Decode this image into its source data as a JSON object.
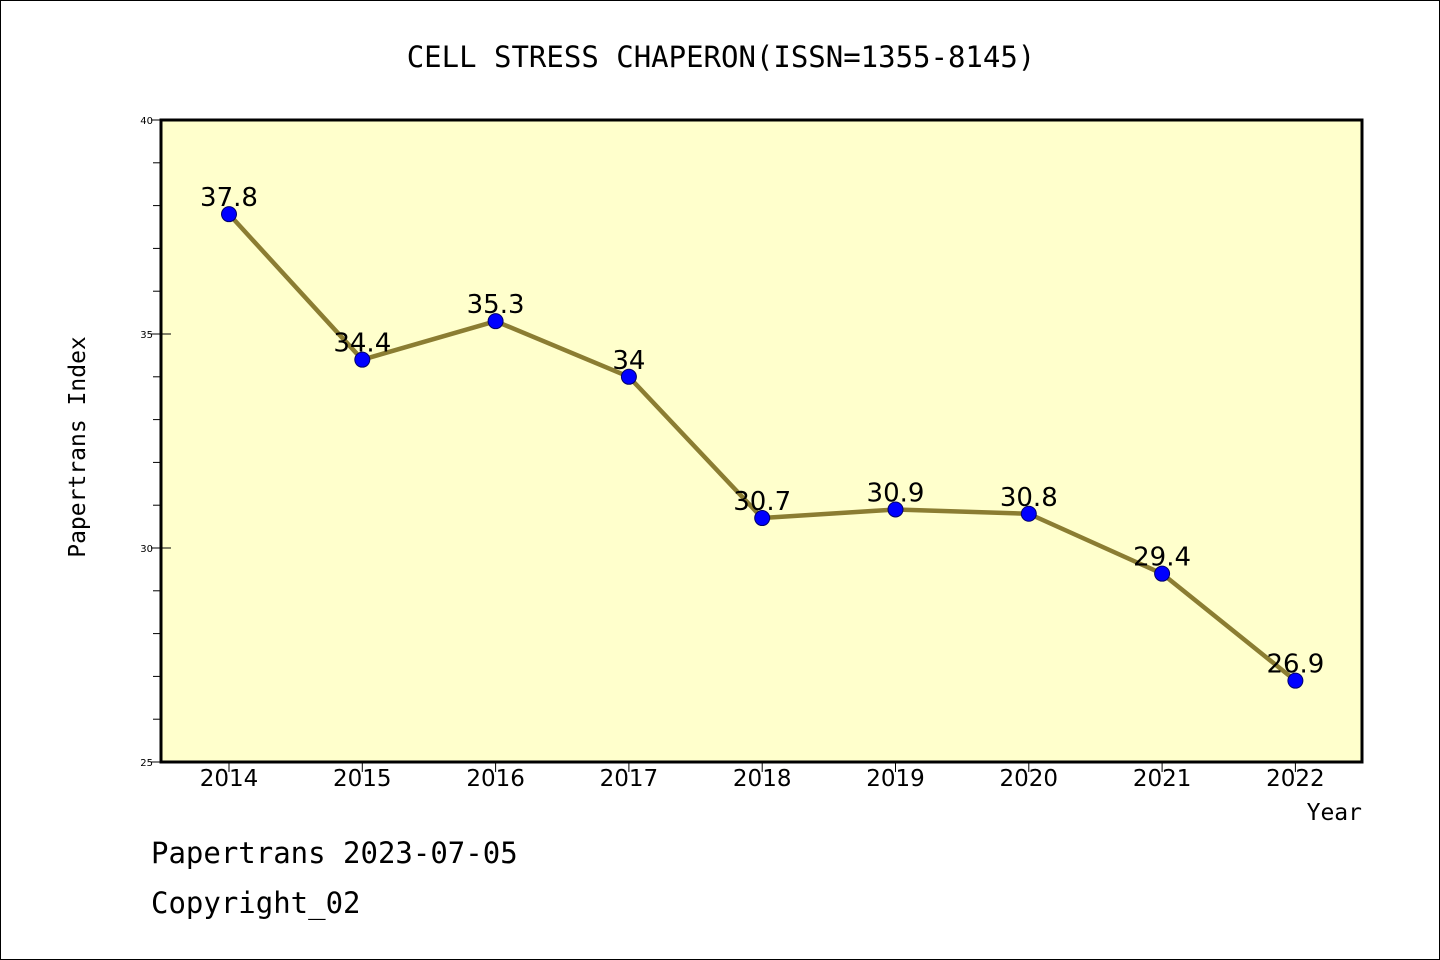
{
  "chart_data": {
    "type": "line",
    "title": "CELL STRESS CHAPERON(ISSN=1355-8145)",
    "xlabel": "Year",
    "ylabel": "Papertrans Index",
    "categories": [
      "2014",
      "2015",
      "2016",
      "2017",
      "2018",
      "2019",
      "2020",
      "2021",
      "2022"
    ],
    "series": [
      {
        "values": [
          37.8,
          34.4,
          35.3,
          34,
          30.7,
          30.9,
          30.8,
          29.4,
          26.9
        ]
      }
    ],
    "data_labels": [
      "37.8",
      "34.4",
      "35.3",
      "34",
      "30.7",
      "30.9",
      "30.8",
      "29.4",
      "26.9"
    ],
    "ylim": [
      25,
      40
    ],
    "y_ticks": [
      "25",
      "30",
      "35",
      "40"
    ],
    "grid": false,
    "colors": {
      "plot_background": "#ffffcc",
      "line": "#8b7d32",
      "marker": "#0000ff"
    }
  },
  "footer": {
    "line1": "Papertrans 2023-07-05",
    "line2": "Copyright_02"
  }
}
